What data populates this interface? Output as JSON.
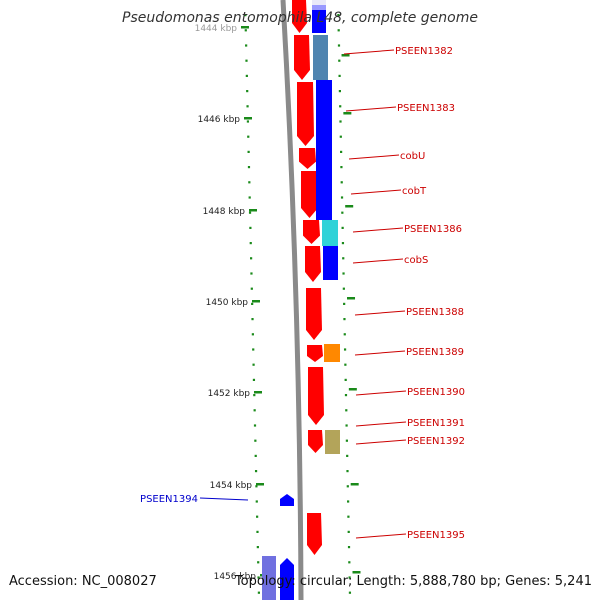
{
  "title": "Pseudomonas entomophila L48, complete genome",
  "footer": {
    "accession": "Accession: NC_008027",
    "summary": "Topology: circular; Length: 5,888,780 bp; Genes: 5,241"
  },
  "colors": {
    "forward": "#ff0000",
    "blue": "#0000ff",
    "steel": "#4f84b0",
    "cyan": "#2fd2d8",
    "orange": "#ff8800",
    "khaki": "#b3a45a",
    "backbone": "#8a8a8a",
    "tick": "#1a8a1a",
    "label_red": "#cc0000",
    "label_blue": "#0000cc"
  },
  "kbp_labels": [
    {
      "text": "1444 kbp",
      "faded": true
    },
    {
      "text": "1446 kbp"
    },
    {
      "text": "1448 kbp"
    },
    {
      "text": "1450 kbp"
    },
    {
      "text": "1452 kbp"
    },
    {
      "text": "1454 kbp"
    },
    {
      "text": "1456 kbp"
    }
  ],
  "gene_labels": [
    {
      "text": "PSEEN1382",
      "side": "right"
    },
    {
      "text": "PSEEN1383",
      "side": "right"
    },
    {
      "text": "cobU",
      "side": "right"
    },
    {
      "text": "cobT",
      "side": "right"
    },
    {
      "text": "PSEEN1386",
      "side": "right"
    },
    {
      "text": "cobS",
      "side": "right"
    },
    {
      "text": "PSEEN1388",
      "side": "right"
    },
    {
      "text": "PSEEN1389",
      "side": "right"
    },
    {
      "text": "PSEEN1390",
      "side": "right"
    },
    {
      "text": "PSEEN1391",
      "side": "right"
    },
    {
      "text": "PSEEN1392",
      "side": "right"
    },
    {
      "text": "PSEEN1394",
      "side": "left"
    },
    {
      "text": "PSEEN1395",
      "side": "right"
    }
  ]
}
